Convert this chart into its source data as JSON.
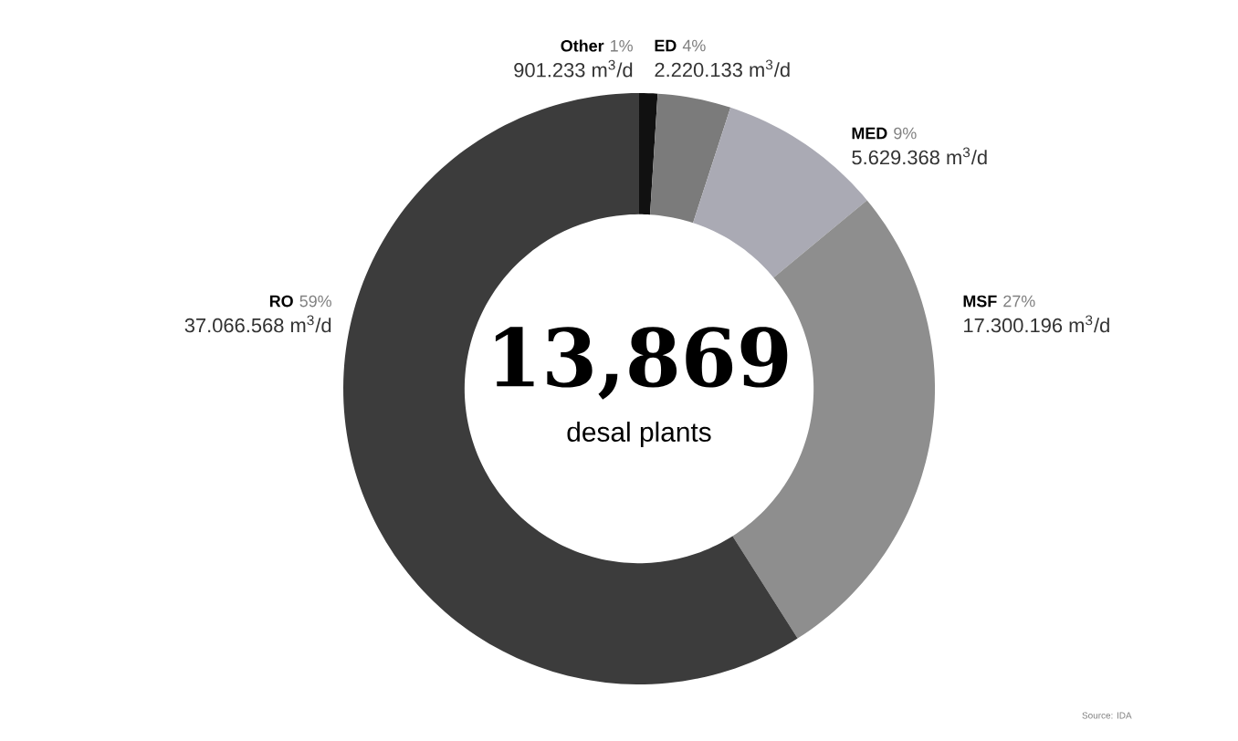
{
  "chart_data": {
    "type": "donut",
    "title": "13,869",
    "subtitle": "desal plants",
    "categories": [
      "Other",
      "ED",
      "MED",
      "MSF",
      "RO"
    ],
    "values": [
      1,
      4,
      9,
      27,
      59
    ],
    "colors": [
      "#111111",
      "#7b7b7b",
      "#aaaab4",
      "#8e8e8e",
      "#3c3c3c"
    ],
    "value_labels": [
      "1%",
      "4%",
      "9%",
      "27%",
      "59%"
    ],
    "annotations": [
      {
        "text": "901.233 m$^{3}$/d",
        "x": "Other"
      },
      {
        "text": "2.220.133 m$^{3}$/d",
        "x": "ED"
      },
      {
        "text": "5.629.368 m$^{3}$/d",
        "x": "MED"
      },
      {
        "text": "17.300.196 m$^{3}$/d",
        "x": "MSF"
      },
      {
        "text": "37.066.568 m$^{3}$/d",
        "x": "RO"
      },
      "Source: IDA"
    ]
  }
}
